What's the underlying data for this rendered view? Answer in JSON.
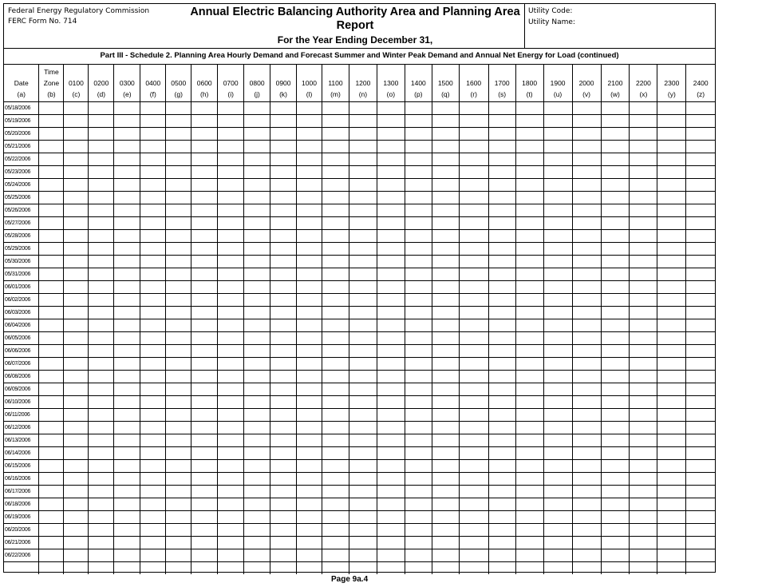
{
  "header": {
    "agency": "Federal Energy Regulatory Commission",
    "form_no": "FERC Form No. 714",
    "title": "Annual Electric Balancing Authority Area and Planning Area Report",
    "subtitle": "For the Year Ending December 31,",
    "utility_code_label": "Utility Code:",
    "utility_name_label": "Utility Name:"
  },
  "section_title": "Part III - Schedule 2. Planning Area Hourly Demand and Forecast Summer and Winter Peak Demand and Annual Net Energy for Load (continued)",
  "columns": [
    {
      "label": "Date",
      "code": "(a)"
    },
    {
      "label": "Time Zone",
      "code": "(b)"
    },
    {
      "label": "0100",
      "code": "(c)"
    },
    {
      "label": "0200",
      "code": "(d)"
    },
    {
      "label": "0300",
      "code": "(e)"
    },
    {
      "label": "0400",
      "code": "(f)"
    },
    {
      "label": "0500",
      "code": "(g)"
    },
    {
      "label": "0600",
      "code": "(h)"
    },
    {
      "label": "0700",
      "code": "(i)"
    },
    {
      "label": "0800",
      "code": "(j)"
    },
    {
      "label": "0900",
      "code": "(k)"
    },
    {
      "label": "1000",
      "code": "(l)"
    },
    {
      "label": "1100",
      "code": "(m)"
    },
    {
      "label": "1200",
      "code": "(n)"
    },
    {
      "label": "1300",
      "code": "(o)"
    },
    {
      "label": "1400",
      "code": "(p)"
    },
    {
      "label": "1500",
      "code": "(q)"
    },
    {
      "label": "1600",
      "code": "(r)"
    },
    {
      "label": "1700",
      "code": "(s)"
    },
    {
      "label": "1800",
      "code": "(t)"
    },
    {
      "label": "1900",
      "code": "(u)"
    },
    {
      "label": "2000",
      "code": "(v)"
    },
    {
      "label": "2100",
      "code": "(w)"
    },
    {
      "label": "2200",
      "code": "(x)"
    },
    {
      "label": "2300",
      "code": "(y)"
    },
    {
      "label": "2400",
      "code": "(z)"
    }
  ],
  "rows": [
    "05/18/2006",
    "05/19/2006",
    "05/20/2006",
    "05/21/2006",
    "05/22/2006",
    "05/23/2006",
    "05/24/2006",
    "05/25/2006",
    "05/26/2006",
    "05/27/2006",
    "05/28/2006",
    "05/29/2006",
    "05/30/2006",
    "05/31/2006",
    "06/01/2006",
    "06/02/2006",
    "06/03/2006",
    "06/04/2006",
    "06/05/2006",
    "06/06/2006",
    "06/07/2006",
    "06/08/2006",
    "06/09/2006",
    "06/10/2006",
    "06/11/2006",
    "06/12/2006",
    "06/13/2006",
    "06/14/2006",
    "06/15/2006",
    "06/16/2006",
    "06/17/2006",
    "06/18/2006",
    "06/19/2006",
    "06/20/2006",
    "06/21/2006",
    "06/22/2006",
    ""
  ],
  "footer": {
    "page": "Page  9a.4"
  }
}
